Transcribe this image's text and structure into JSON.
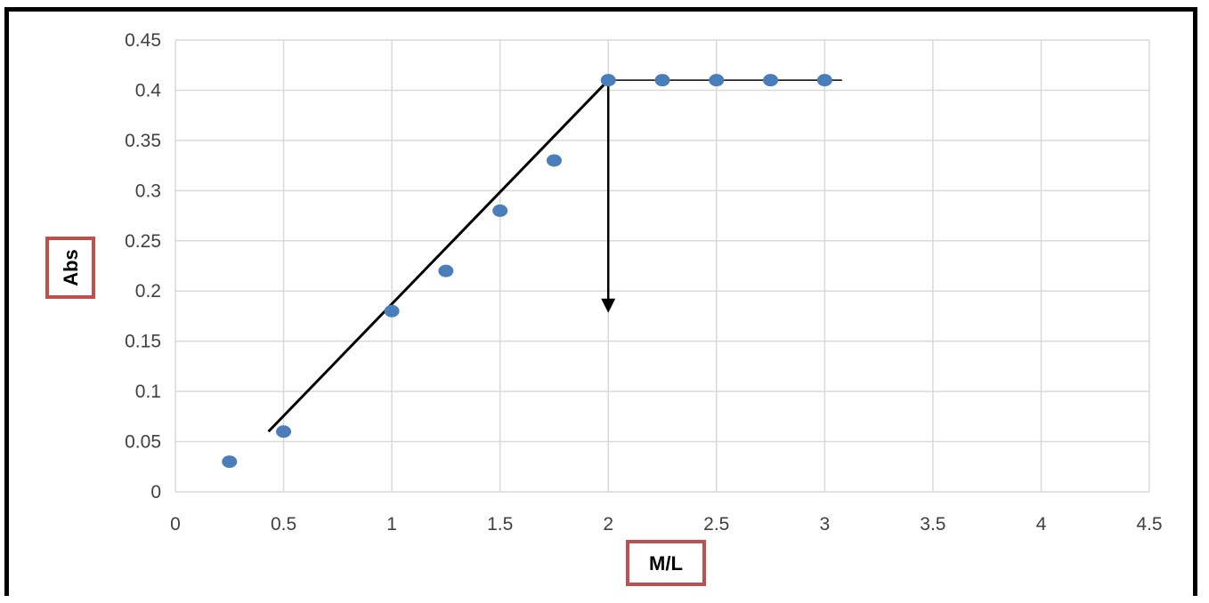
{
  "chart_data": {
    "type": "scatter",
    "title": "",
    "xlabel": "M/L",
    "ylabel": "Abs",
    "xlim": [
      0,
      4.5
    ],
    "ylim": [
      0,
      0.45
    ],
    "x_ticks": [
      "0",
      "0.5",
      "1",
      "1.5",
      "2",
      "2.5",
      "3",
      "3.5",
      "4",
      "4.5"
    ],
    "y_ticks": [
      "0",
      "0.05",
      "0.1",
      "0.15",
      "0.2",
      "0.25",
      "0.3",
      "0.35",
      "0.4",
      "0.45"
    ],
    "grid": true,
    "legend": "none",
    "series": [
      {
        "x": [
          0.25,
          0.5,
          1.0,
          1.25,
          1.5,
          1.75,
          2.0,
          2.25,
          2.5,
          2.75,
          3.0
        ],
        "y": [
          0.03,
          0.06,
          0.18,
          0.22,
          0.28,
          0.33,
          0.41,
          0.41,
          0.41,
          0.41,
          0.41
        ],
        "color": "#4a7ebb"
      }
    ],
    "annotations": [
      {
        "kind": "fit-line-rising",
        "from": [
          0.43,
          0.06
        ],
        "to": [
          2.0,
          0.41
        ]
      },
      {
        "kind": "fit-line-plateau",
        "from": [
          2.0,
          0.41
        ],
        "to": [
          3.08,
          0.41
        ]
      },
      {
        "kind": "arrow-down",
        "from": [
          2.0,
          0.41
        ],
        "to": [
          2.0,
          0.18
        ]
      }
    ],
    "colors": {
      "marker": "#4a7ebb",
      "grid": "#d9d9d9",
      "annotation_line": "#000000",
      "label_box_border": "#c0504d"
    }
  }
}
